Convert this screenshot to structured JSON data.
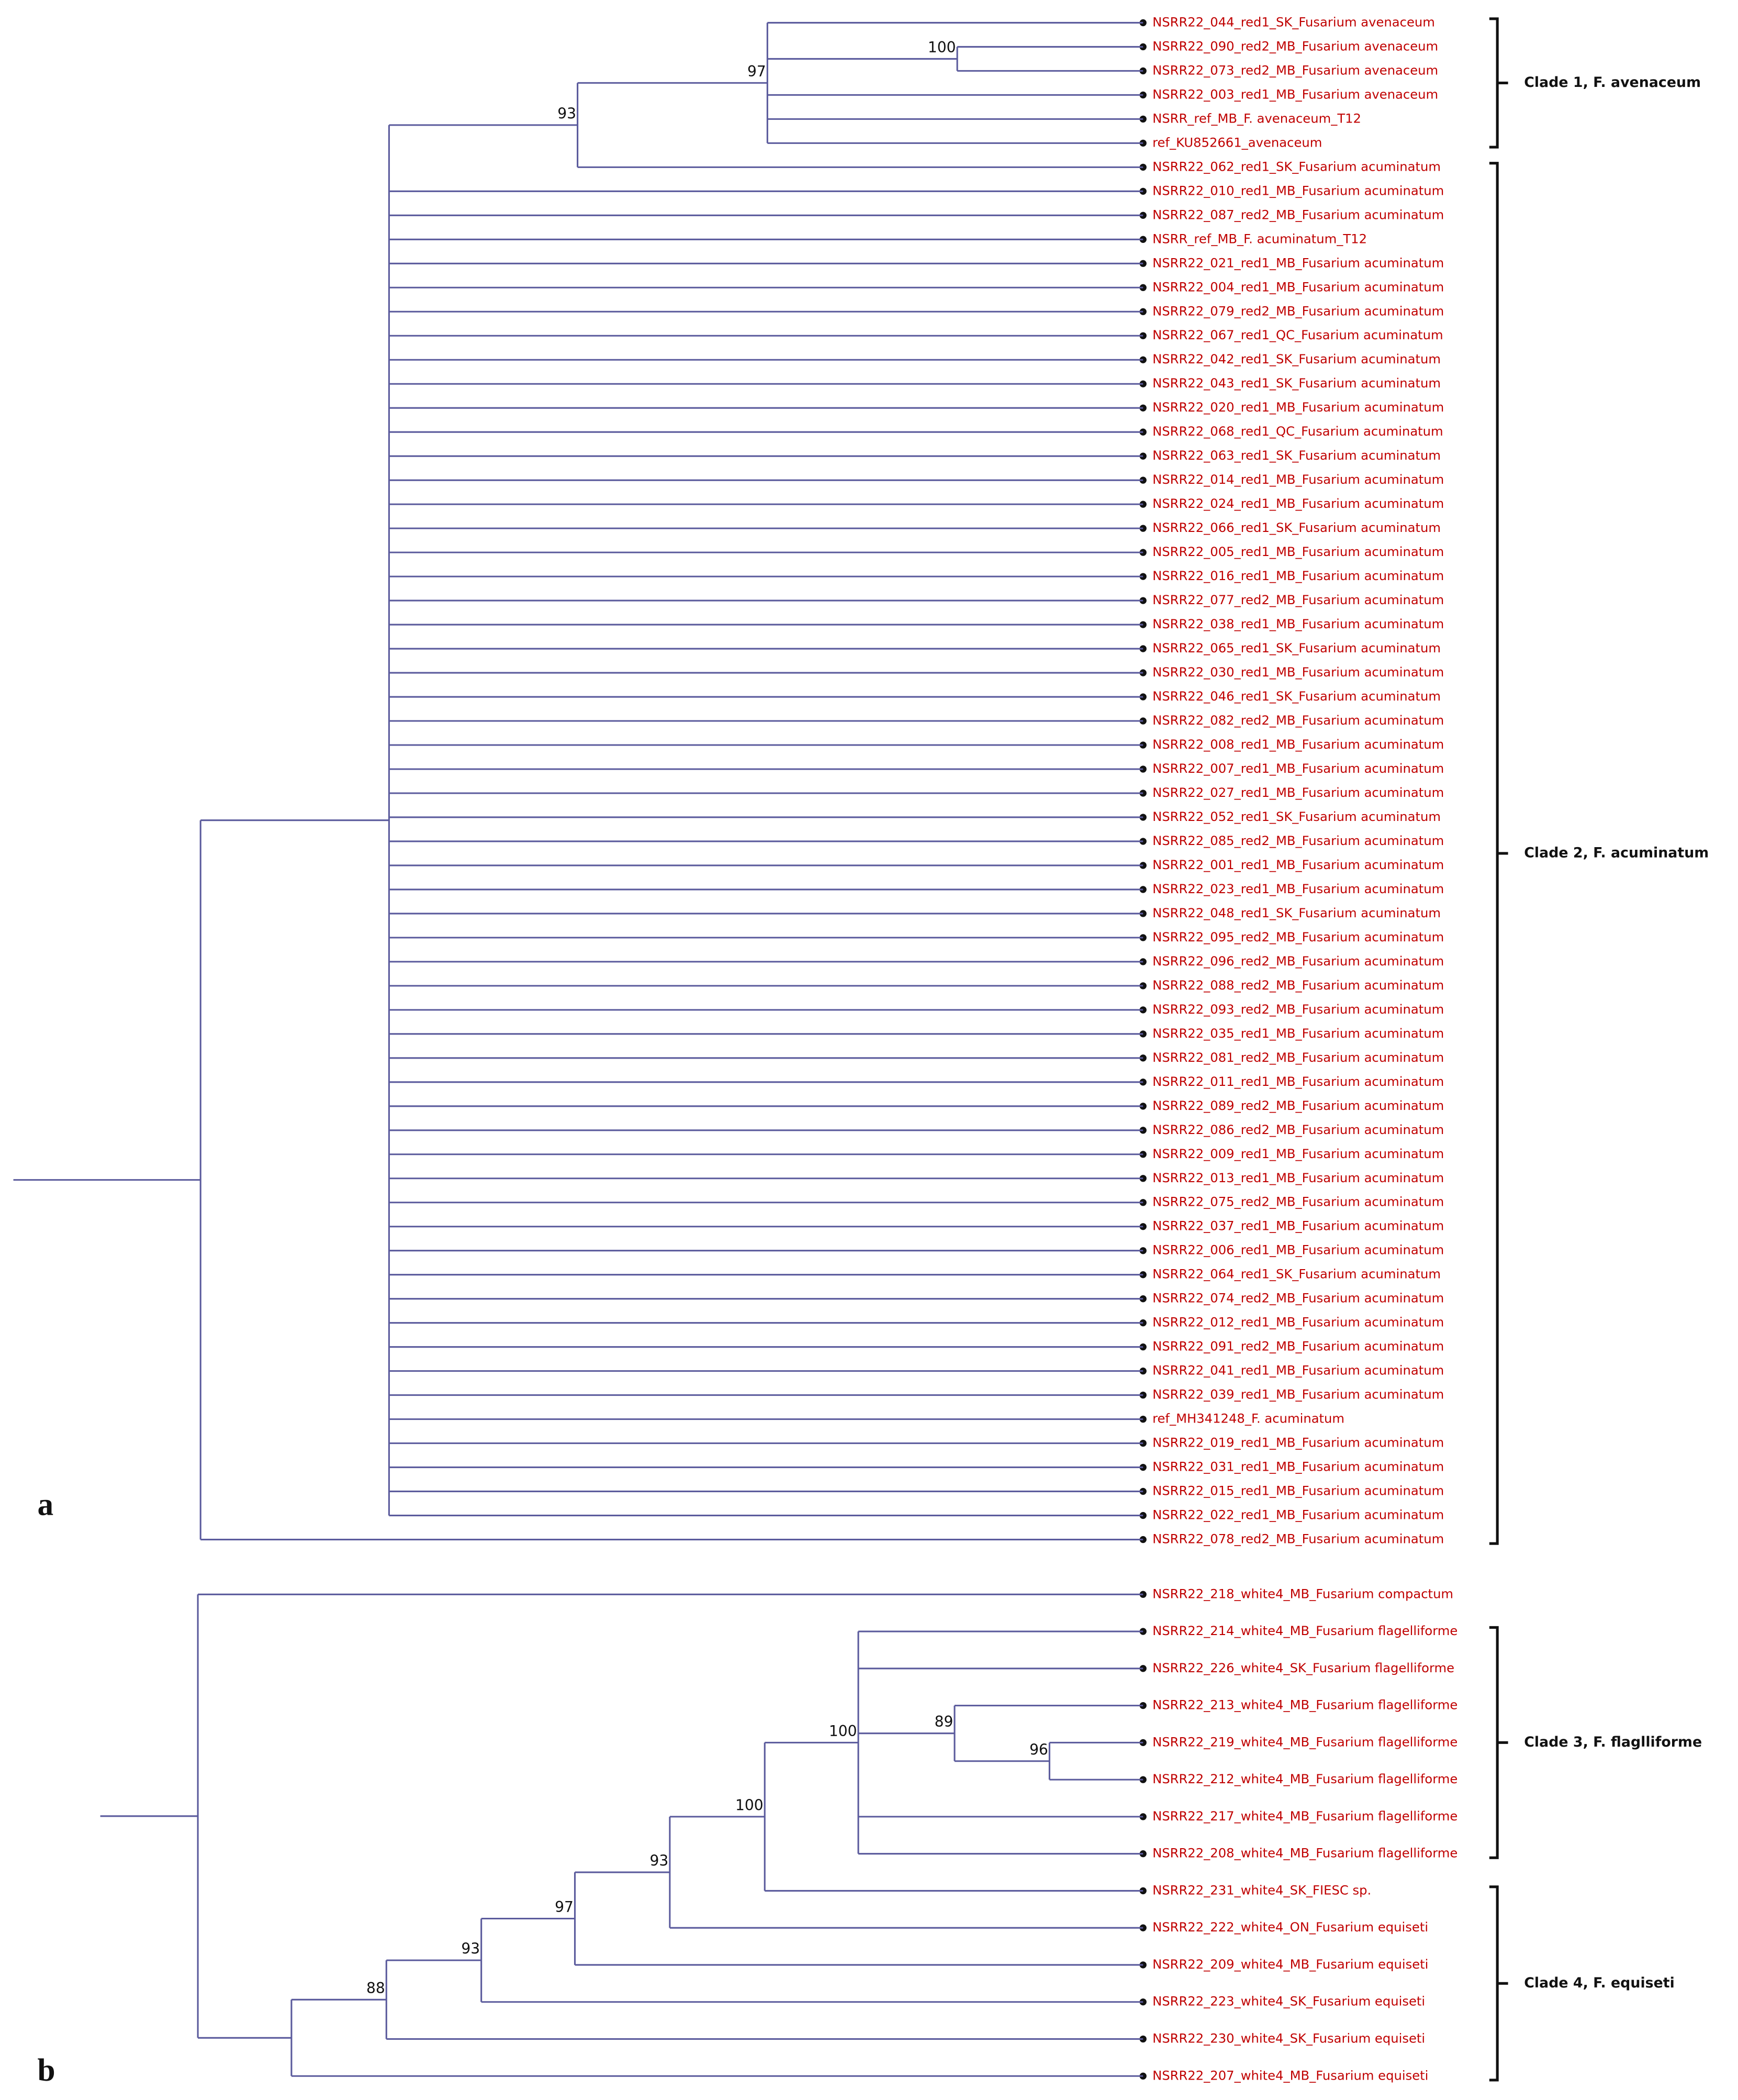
{
  "panels": [
    {
      "label": "a",
      "leaves": [
        "NSRR22_044_red1_SK_Fusarium avenaceum",
        "NSRR22_090_red2_MB_Fusarium avenaceum",
        "NSRR22_073_red2_MB_Fusarium avenaceum",
        "NSRR22_003_red1_MB_Fusarium avenaceum",
        "NSRR_ref_MB_F. avenaceum_T12",
        "ref_KU852661_avenaceum",
        "NSRR22_062_red1_SK_Fusarium acuminatum",
        "NSRR22_010_red1_MB_Fusarium acuminatum",
        "NSRR22_087_red2_MB_Fusarium acuminatum",
        "NSRR_ref_MB_F. acuminatum_T12",
        "NSRR22_021_red1_MB_Fusarium acuminatum",
        "NSRR22_004_red1_MB_Fusarium acuminatum",
        "NSRR22_079_red2_MB_Fusarium acuminatum",
        "NSRR22_067_red1_QC_Fusarium acuminatum",
        "NSRR22_042_red1_SK_Fusarium acuminatum",
        "NSRR22_043_red1_SK_Fusarium acuminatum",
        "NSRR22_020_red1_MB_Fusarium acuminatum",
        "NSRR22_068_red1_QC_Fusarium acuminatum",
        "NSRR22_063_red1_SK_Fusarium acuminatum",
        "NSRR22_014_red1_MB_Fusarium acuminatum",
        "NSRR22_024_red1_MB_Fusarium acuminatum",
        "NSRR22_066_red1_SK_Fusarium acuminatum",
        "NSRR22_005_red1_MB_Fusarium acuminatum",
        "NSRR22_016_red1_MB_Fusarium acuminatum",
        "NSRR22_077_red2_MB_Fusarium acuminatum",
        "NSRR22_038_red1_MB_Fusarium acuminatum",
        "NSRR22_065_red1_SK_Fusarium acuminatum",
        "NSRR22_030_red1_MB_Fusarium acuminatum",
        "NSRR22_046_red1_SK_Fusarium acuminatum",
        "NSRR22_082_red2_MB_Fusarium acuminatum",
        "NSRR22_008_red1_MB_Fusarium acuminatum",
        "NSRR22_007_red1_MB_Fusarium acuminatum",
        "NSRR22_027_red1_MB_Fusarium acuminatum",
        "NSRR22_052_red1_SK_Fusarium acuminatum",
        "NSRR22_085_red2_MB_Fusarium acuminatum",
        "NSRR22_001_red1_MB_Fusarium acuminatum",
        "NSRR22_023_red1_MB_Fusarium acuminatum",
        "NSRR22_048_red1_SK_Fusarium acuminatum",
        "NSRR22_095_red2_MB_Fusarium acuminatum",
        "NSRR22_096_red2_MB_Fusarium acuminatum",
        "NSRR22_088_red2_MB_Fusarium acuminatum",
        "NSRR22_093_red2_MB_Fusarium acuminatum",
        "NSRR22_035_red1_MB_Fusarium acuminatum",
        "NSRR22_081_red2_MB_Fusarium acuminatum",
        "NSRR22_011_red1_MB_Fusarium acuminatum",
        "NSRR22_089_red2_MB_Fusarium acuminatum",
        "NSRR22_086_red2_MB_Fusarium acuminatum",
        "NSRR22_009_red1_MB_Fusarium acuminatum",
        "NSRR22_013_red1_MB_Fusarium acuminatum",
        "NSRR22_075_red2_MB_Fusarium acuminatum",
        "NSRR22_037_red1_MB_Fusarium acuminatum",
        "NSRR22_006_red1_MB_Fusarium acuminatum",
        "NSRR22_064_red1_SK_Fusarium acuminatum",
        "NSRR22_074_red2_MB_Fusarium acuminatum",
        "NSRR22_012_red1_MB_Fusarium acuminatum",
        "NSRR22_091_red2_MB_Fusarium acuminatum",
        "NSRR22_041_red1_MB_Fusarium acuminatum",
        "NSRR22_039_red1_MB_Fusarium acuminatum",
        "ref_MH341248_F. acuminatum",
        "NSRR22_019_red1_MB_Fusarium acuminatum",
        "NSRR22_031_red1_MB_Fusarium acuminatum",
        "NSRR22_015_red1_MB_Fusarium acuminatum",
        "NSRR22_022_red1_MB_Fusarium acuminatum",
        "NSRR22_078_red2_MB_Fusarium acuminatum"
      ],
      "bootstrap": [
        "93",
        "97",
        "100"
      ],
      "clades": [
        "Clade 1, F. avenaceum",
        "Clade 2, F. acuminatum"
      ]
    },
    {
      "label": "b",
      "leaves": [
        "NSRR22_218_white4_MB_Fusarium compactum",
        "NSRR22_214_white4_MB_Fusarium flagelliforme",
        "NSRR22_226_white4_SK_Fusarium flagelliforme",
        "NSRR22_213_white4_MB_Fusarium flagelliforme",
        "NSRR22_219_white4_MB_Fusarium flagelliforme",
        "NSRR22_212_white4_MB_Fusarium flagelliforme",
        "NSRR22_217_white4_MB_Fusarium flagelliforme",
        "NSRR22_208_white4_MB_Fusarium flagelliforme",
        "NSRR22_231_white4_SK_FIESC sp.",
        "NSRR22_222_white4_ON_Fusarium equiseti",
        "NSRR22_209_white4_MB_Fusarium equiseti",
        "NSRR22_223_white4_SK_Fusarium equiseti",
        "NSRR22_230_white4_SK_Fusarium equiseti",
        "NSRR22_207_white4_MB_Fusarium equiseti"
      ],
      "bootstrap": [
        "88",
        "93",
        "97",
        "93",
        "100",
        "100",
        "89",
        "96"
      ],
      "clades": [
        "Clade 3, F. flaglliforme",
        "Clade 4, F. equiseti"
      ]
    }
  ]
}
